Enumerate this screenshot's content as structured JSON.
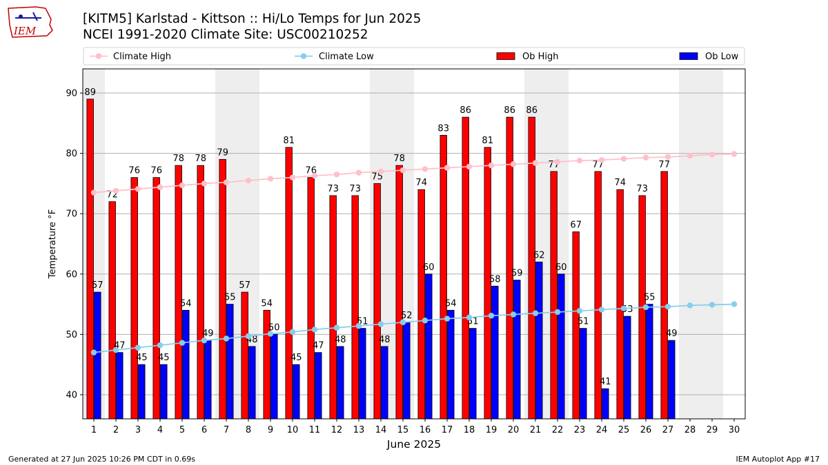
{
  "header": {
    "title_line1": "[KITM5] Karlstad - Kittson :: Hi/Lo Temps for Jun 2025",
    "title_line2": "NCEI 1991-2020 Climate Site: USC00210252",
    "logo_text": "IEM"
  },
  "footer": {
    "left": "Generated at 27 Jun 2025 10:26 PM CDT in 0.69s",
    "right": "IEM Autoplot App #17"
  },
  "colors": {
    "ob_high": "#ff0000",
    "ob_low": "#0000ff",
    "climate_high": "#ffc0cb",
    "climate_low": "#87ceeb",
    "weekend_band": "#eeeeee",
    "grid": "#b0b0b0"
  },
  "chart_data": {
    "type": "bar",
    "xlabel": "June 2025",
    "ylabel": "Temperature °F",
    "ylim": [
      36,
      94
    ],
    "yticks": [
      40,
      50,
      60,
      70,
      80,
      90
    ],
    "grid": "horizontal",
    "legend_position": "top",
    "categories": [
      "1",
      "2",
      "3",
      "4",
      "5",
      "6",
      "7",
      "8",
      "9",
      "10",
      "11",
      "12",
      "13",
      "14",
      "15",
      "16",
      "17",
      "18",
      "19",
      "20",
      "21",
      "22",
      "23",
      "24",
      "25",
      "26",
      "27",
      "28",
      "29",
      "30"
    ],
    "weekend_days": [
      "1",
      "7",
      "8",
      "14",
      "15",
      "21",
      "22",
      "28",
      "29"
    ],
    "series": [
      {
        "name": "Ob High",
        "kind": "bar",
        "values": [
          89,
          72,
          76,
          76,
          78,
          78,
          79,
          57,
          54,
          81,
          76,
          73,
          73,
          75,
          78,
          74,
          83,
          86,
          81,
          86,
          86,
          77,
          67,
          77,
          74,
          73,
          77,
          null,
          null,
          null
        ]
      },
      {
        "name": "Ob Low",
        "kind": "bar",
        "values": [
          57,
          47,
          45,
          45,
          54,
          49,
          55,
          48,
          50,
          45,
          47,
          48,
          51,
          48,
          52,
          60,
          54,
          51,
          58,
          59,
          62,
          60,
          51,
          41,
          53,
          55,
          49,
          null,
          null,
          null
        ]
      },
      {
        "name": "Climate High",
        "kind": "line",
        "values": [
          73.5,
          73.8,
          74.1,
          74.4,
          74.7,
          75.0,
          75.2,
          75.5,
          75.8,
          76.0,
          76.3,
          76.5,
          76.8,
          77.0,
          77.2,
          77.4,
          77.6,
          77.8,
          78.0,
          78.2,
          78.4,
          78.6,
          78.8,
          78.9,
          79.1,
          79.3,
          79.4,
          79.6,
          79.8,
          79.9
        ]
      },
      {
        "name": "Climate Low",
        "kind": "line",
        "values": [
          47.0,
          47.4,
          47.8,
          48.2,
          48.6,
          49.0,
          49.3,
          49.7,
          50.1,
          50.4,
          50.8,
          51.1,
          51.4,
          51.7,
          52.0,
          52.3,
          52.6,
          52.8,
          53.1,
          53.3,
          53.5,
          53.7,
          53.9,
          54.1,
          54.3,
          54.5,
          54.6,
          54.8,
          54.9,
          55.0
        ]
      }
    ]
  }
}
